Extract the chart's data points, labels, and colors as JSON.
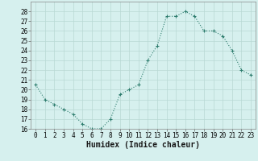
{
  "x": [
    0,
    1,
    2,
    3,
    4,
    5,
    6,
    7,
    8,
    9,
    10,
    11,
    12,
    13,
    14,
    15,
    16,
    17,
    18,
    19,
    20,
    21,
    22,
    23
  ],
  "y": [
    20.5,
    19.0,
    18.5,
    18.0,
    17.5,
    16.5,
    16.0,
    16.0,
    17.0,
    19.5,
    20.0,
    20.5,
    23.0,
    24.5,
    27.5,
    27.5,
    28.0,
    27.5,
    26.0,
    26.0,
    25.5,
    24.0,
    22.0,
    21.5
  ],
  "line_color": "#2e7d6e",
  "marker": "P",
  "marker_size": 2.5,
  "bg_color": "#d6f0ee",
  "grid_color": "#b8d8d4",
  "xlabel": "Humidex (Indice chaleur)",
  "ylim": [
    16,
    29
  ],
  "xlim": [
    -0.5,
    23.5
  ],
  "yticks": [
    16,
    17,
    18,
    19,
    20,
    21,
    22,
    23,
    24,
    25,
    26,
    27,
    28
  ],
  "xticks": [
    0,
    1,
    2,
    3,
    4,
    5,
    6,
    7,
    8,
    9,
    10,
    11,
    12,
    13,
    14,
    15,
    16,
    17,
    18,
    19,
    20,
    21,
    22,
    23
  ],
  "xtick_labels": [
    "0",
    "1",
    "2",
    "3",
    "4",
    "5",
    "6",
    "7",
    "8",
    "9",
    "10",
    "11",
    "12",
    "13",
    "14",
    "15",
    "16",
    "17",
    "18",
    "19",
    "20",
    "21",
    "22",
    "23"
  ],
  "tick_fontsize": 5.5,
  "xlabel_fontsize": 7,
  "linewidth": 0.8
}
